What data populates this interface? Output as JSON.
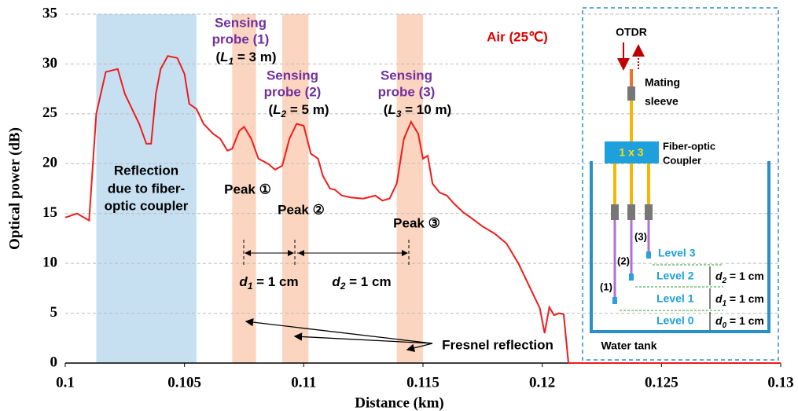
{
  "chart_data": {
    "type": "line",
    "xlabel": "Distance (km)",
    "ylabel": "Optical power (dB)",
    "xlim": [
      0.1,
      0.13
    ],
    "xticks": [
      0.1,
      0.105,
      0.11,
      0.115,
      0.12,
      0.125,
      0.13
    ],
    "ylim": [
      0,
      35
    ],
    "yticks": [
      0,
      5,
      10,
      15,
      20,
      25,
      30,
      35
    ],
    "grid": true,
    "bands": [
      {
        "from": 0.1013,
        "to": 0.1055,
        "color": "#c6e0f2"
      },
      {
        "from": 0.107,
        "to": 0.108,
        "color": "#fbd5bf"
      },
      {
        "from": 0.1091,
        "to": 0.1102,
        "color": "#fbd5bf"
      },
      {
        "from": 0.1139,
        "to": 0.115,
        "color": "#fbd5bf"
      }
    ],
    "series": [
      {
        "color": "#ee1c1c",
        "x": [
          0.1,
          0.1005,
          0.101,
          0.1013,
          0.1017,
          0.1022,
          0.1025,
          0.1028,
          0.1031,
          0.1034,
          0.1036,
          0.1038,
          0.104,
          0.1043,
          0.1047,
          0.105,
          0.1052,
          0.1055,
          0.1058,
          0.1062,
          0.1065,
          0.1068,
          0.107,
          0.1073,
          0.1075,
          0.1078,
          0.1081,
          0.1085,
          0.1088,
          0.1091,
          0.1094,
          0.1097,
          0.11,
          0.1103,
          0.1106,
          0.1108,
          0.1111,
          0.1113,
          0.1116,
          0.112,
          0.1125,
          0.113,
          0.1133,
          0.1136,
          0.1139,
          0.1142,
          0.1145,
          0.1148,
          0.115,
          0.1152,
          0.1154,
          0.1157,
          0.116,
          0.1163,
          0.1167,
          0.117,
          0.1175,
          0.118,
          0.1185,
          0.119,
          0.1195,
          0.1199,
          0.1201,
          0.1203,
          0.1205,
          0.1207,
          0.1209,
          0.1211,
          0.13
        ],
        "values": [
          14.6,
          15.0,
          14.3,
          25,
          29.2,
          29.5,
          27,
          25.5,
          24,
          22,
          22,
          27,
          29.5,
          30.8,
          30.6,
          29,
          26,
          25.5,
          24,
          23,
          22.5,
          21.3,
          21.5,
          23.3,
          23.7,
          22.5,
          20.5,
          20,
          19.4,
          19.8,
          22.5,
          24,
          23.8,
          21,
          20.5,
          18.8,
          17.5,
          17.4,
          16.8,
          16.6,
          16.5,
          16.8,
          16.3,
          16.5,
          18,
          22.5,
          24.2,
          23,
          20.5,
          20.8,
          18,
          17.1,
          16.8,
          16,
          15.1,
          14.6,
          13.7,
          13,
          12,
          10,
          7.5,
          5.5,
          3,
          5.6,
          4.8,
          5,
          4.9,
          0,
          0
        ]
      }
    ],
    "annotations": [
      {
        "text": "Sensing"
      },
      {
        "text": "probe (1)"
      },
      {
        "prefix": "(",
        "var": "L",
        "sub": "1",
        "text": " = 3 m)"
      },
      {
        "text": "Sensing"
      },
      {
        "text": "probe (2)"
      },
      {
        "prefix": "(",
        "var": "L",
        "sub": "2",
        "text": " = 5 m)"
      },
      {
        "text": "Sensing"
      },
      {
        "text": "probe (3)"
      },
      {
        "prefix": "(",
        "var": "L",
        "sub": "3",
        "text": " = 10 m)"
      },
      {
        "text": "Air (25℃)"
      },
      {
        "text": "Reflection"
      },
      {
        "text": "due to fiber-"
      },
      {
        "text": "optic coupler"
      },
      {
        "text": "Peak ①"
      },
      {
        "text": "Peak ②"
      },
      {
        "text": "Peak ③"
      },
      {
        "var": "d",
        "sub": "1",
        "text": " = 1 cm"
      },
      {
        "var": "d",
        "sub": "2",
        "text": " = 1 cm"
      },
      {
        "text": "Fresnel reflection"
      }
    ]
  },
  "inset": {
    "otdr": "OTDR",
    "sleeve": [
      "Mating",
      "sleeve"
    ],
    "coupler": "1 x 3",
    "coupler_label": [
      "Fiber-optic",
      "Coupler"
    ],
    "probes": [
      "(1)",
      "(2)",
      "(3)"
    ],
    "levels": [
      "Level 3",
      "Level 2",
      "Level 1",
      "Level 0"
    ],
    "gaps": [
      {
        "var": "d",
        "sub": "2",
        "text": " = 1 cm"
      },
      {
        "var": "d",
        "sub": "1",
        "text": " = 1 cm"
      },
      {
        "var": "d",
        "sub": "0",
        "text": " = 1 cm"
      }
    ],
    "tank": "Water tank"
  }
}
